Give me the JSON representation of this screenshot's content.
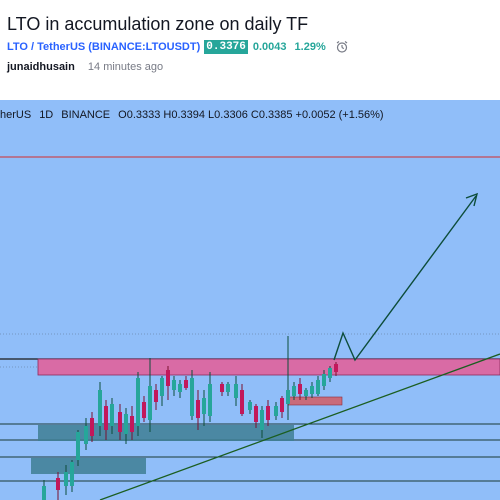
{
  "idea": {
    "title": "LTO in accumulation zone on daily TF",
    "symbol_link": "LTO / TetherUS",
    "exchange_symbol": "(BINANCE:LTOUSDT)",
    "price": "0.3376",
    "change": "0.0043",
    "change_percent": "1.29%",
    "alarm_icon": "alarm-clock-icon",
    "author": "junaidhusain",
    "published": "14 minutes ago"
  },
  "chart_legend": {
    "symbol": "herUS",
    "interval": "1D",
    "exchange": "BINANCE",
    "ohlc": "O0.3333 H0.3394 L0.3306 C0.3385 +0.0052 (+1.56%)"
  },
  "colors": {
    "chart_background": "#90bef9",
    "resistance_line": "#d32f2f",
    "pink_zone": "#d96ba5",
    "teal_zone": "#3f7f94",
    "bullish_candle": "#26a69a",
    "bearish_candle": "#c2185b",
    "arrow": "#0d4d3a",
    "trendline": "#1b5e20"
  },
  "annotations": {
    "resistance_line_icon": "horizontal-line",
    "accumulation_zone_icon": "rectangle-zone",
    "projection_icon": "up-arrow-path"
  }
}
